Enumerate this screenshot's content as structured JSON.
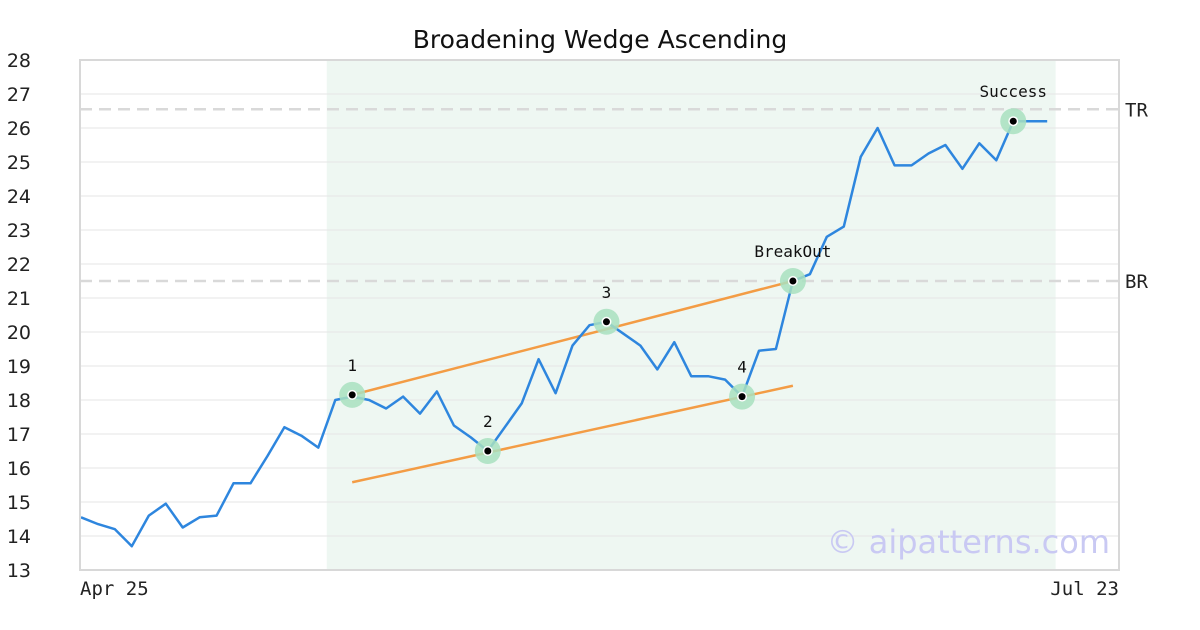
{
  "chart_data": {
    "type": "line",
    "title": "Broadening Wedge Ascending",
    "xlabel": "",
    "ylabel": "",
    "ylim": [
      13,
      28
    ],
    "y_ticks": [
      13,
      14,
      15,
      16,
      17,
      18,
      19,
      20,
      21,
      22,
      23,
      24,
      25,
      26,
      27,
      28
    ],
    "x_tick_labels": [
      "Apr 25",
      "Jul 23"
    ],
    "grid": "horizontal",
    "x_start": "Apr 25",
    "x_end": "Jul 23",
    "pattern_region": {
      "start_index": 14,
      "end_index": 57
    },
    "values": [
      14.55,
      14.35,
      14.2,
      13.7,
      14.6,
      14.95,
      14.25,
      14.55,
      14.6,
      15.55,
      15.55,
      16.35,
      17.2,
      16.95,
      16.6,
      18.0,
      18.1,
      18.0,
      17.75,
      18.1,
      17.6,
      18.25,
      17.25,
      16.9,
      16.5,
      17.2,
      17.9,
      19.2,
      18.2,
      19.6,
      20.2,
      20.3,
      19.95,
      19.6,
      18.9,
      19.7,
      18.7,
      18.7,
      18.6,
      18.1,
      19.45,
      19.5,
      21.5,
      21.7,
      22.8,
      23.1,
      25.15,
      26.0,
      24.9,
      24.9,
      25.25,
      25.5,
      24.8,
      25.55,
      25.05,
      26.2,
      26.2,
      26.2
    ],
    "markers": [
      {
        "label": "1",
        "index": 16,
        "value": 18.15
      },
      {
        "label": "2",
        "index": 24,
        "value": 16.5
      },
      {
        "label": "3",
        "index": 31,
        "value": 20.3
      },
      {
        "label": "4",
        "index": 39,
        "value": 18.1
      },
      {
        "label": "BreakOut",
        "index": 42,
        "value": 21.5
      },
      {
        "label": "Success",
        "index": 55,
        "value": 26.2
      }
    ],
    "trendlines": [
      {
        "name": "upper",
        "from": [
          16,
          18.15
        ],
        "to": [
          42,
          21.5
        ]
      },
      {
        "name": "lower",
        "from": [
          16,
          15.58
        ],
        "to": [
          42,
          18.42
        ]
      }
    ],
    "reference_lines": [
      {
        "label": "TR",
        "value": 26.55
      },
      {
        "label": "BR",
        "value": 21.5
      }
    ],
    "colors": {
      "price_line": "#2e86de",
      "trendline": "#f39c45",
      "pattern_region": "#eef7f2",
      "marker_halo": "#a8e0c0",
      "reference_line": "#d9d9d9",
      "watermark": "#c9c9f3"
    }
  },
  "watermark": "© aipatterns.com"
}
